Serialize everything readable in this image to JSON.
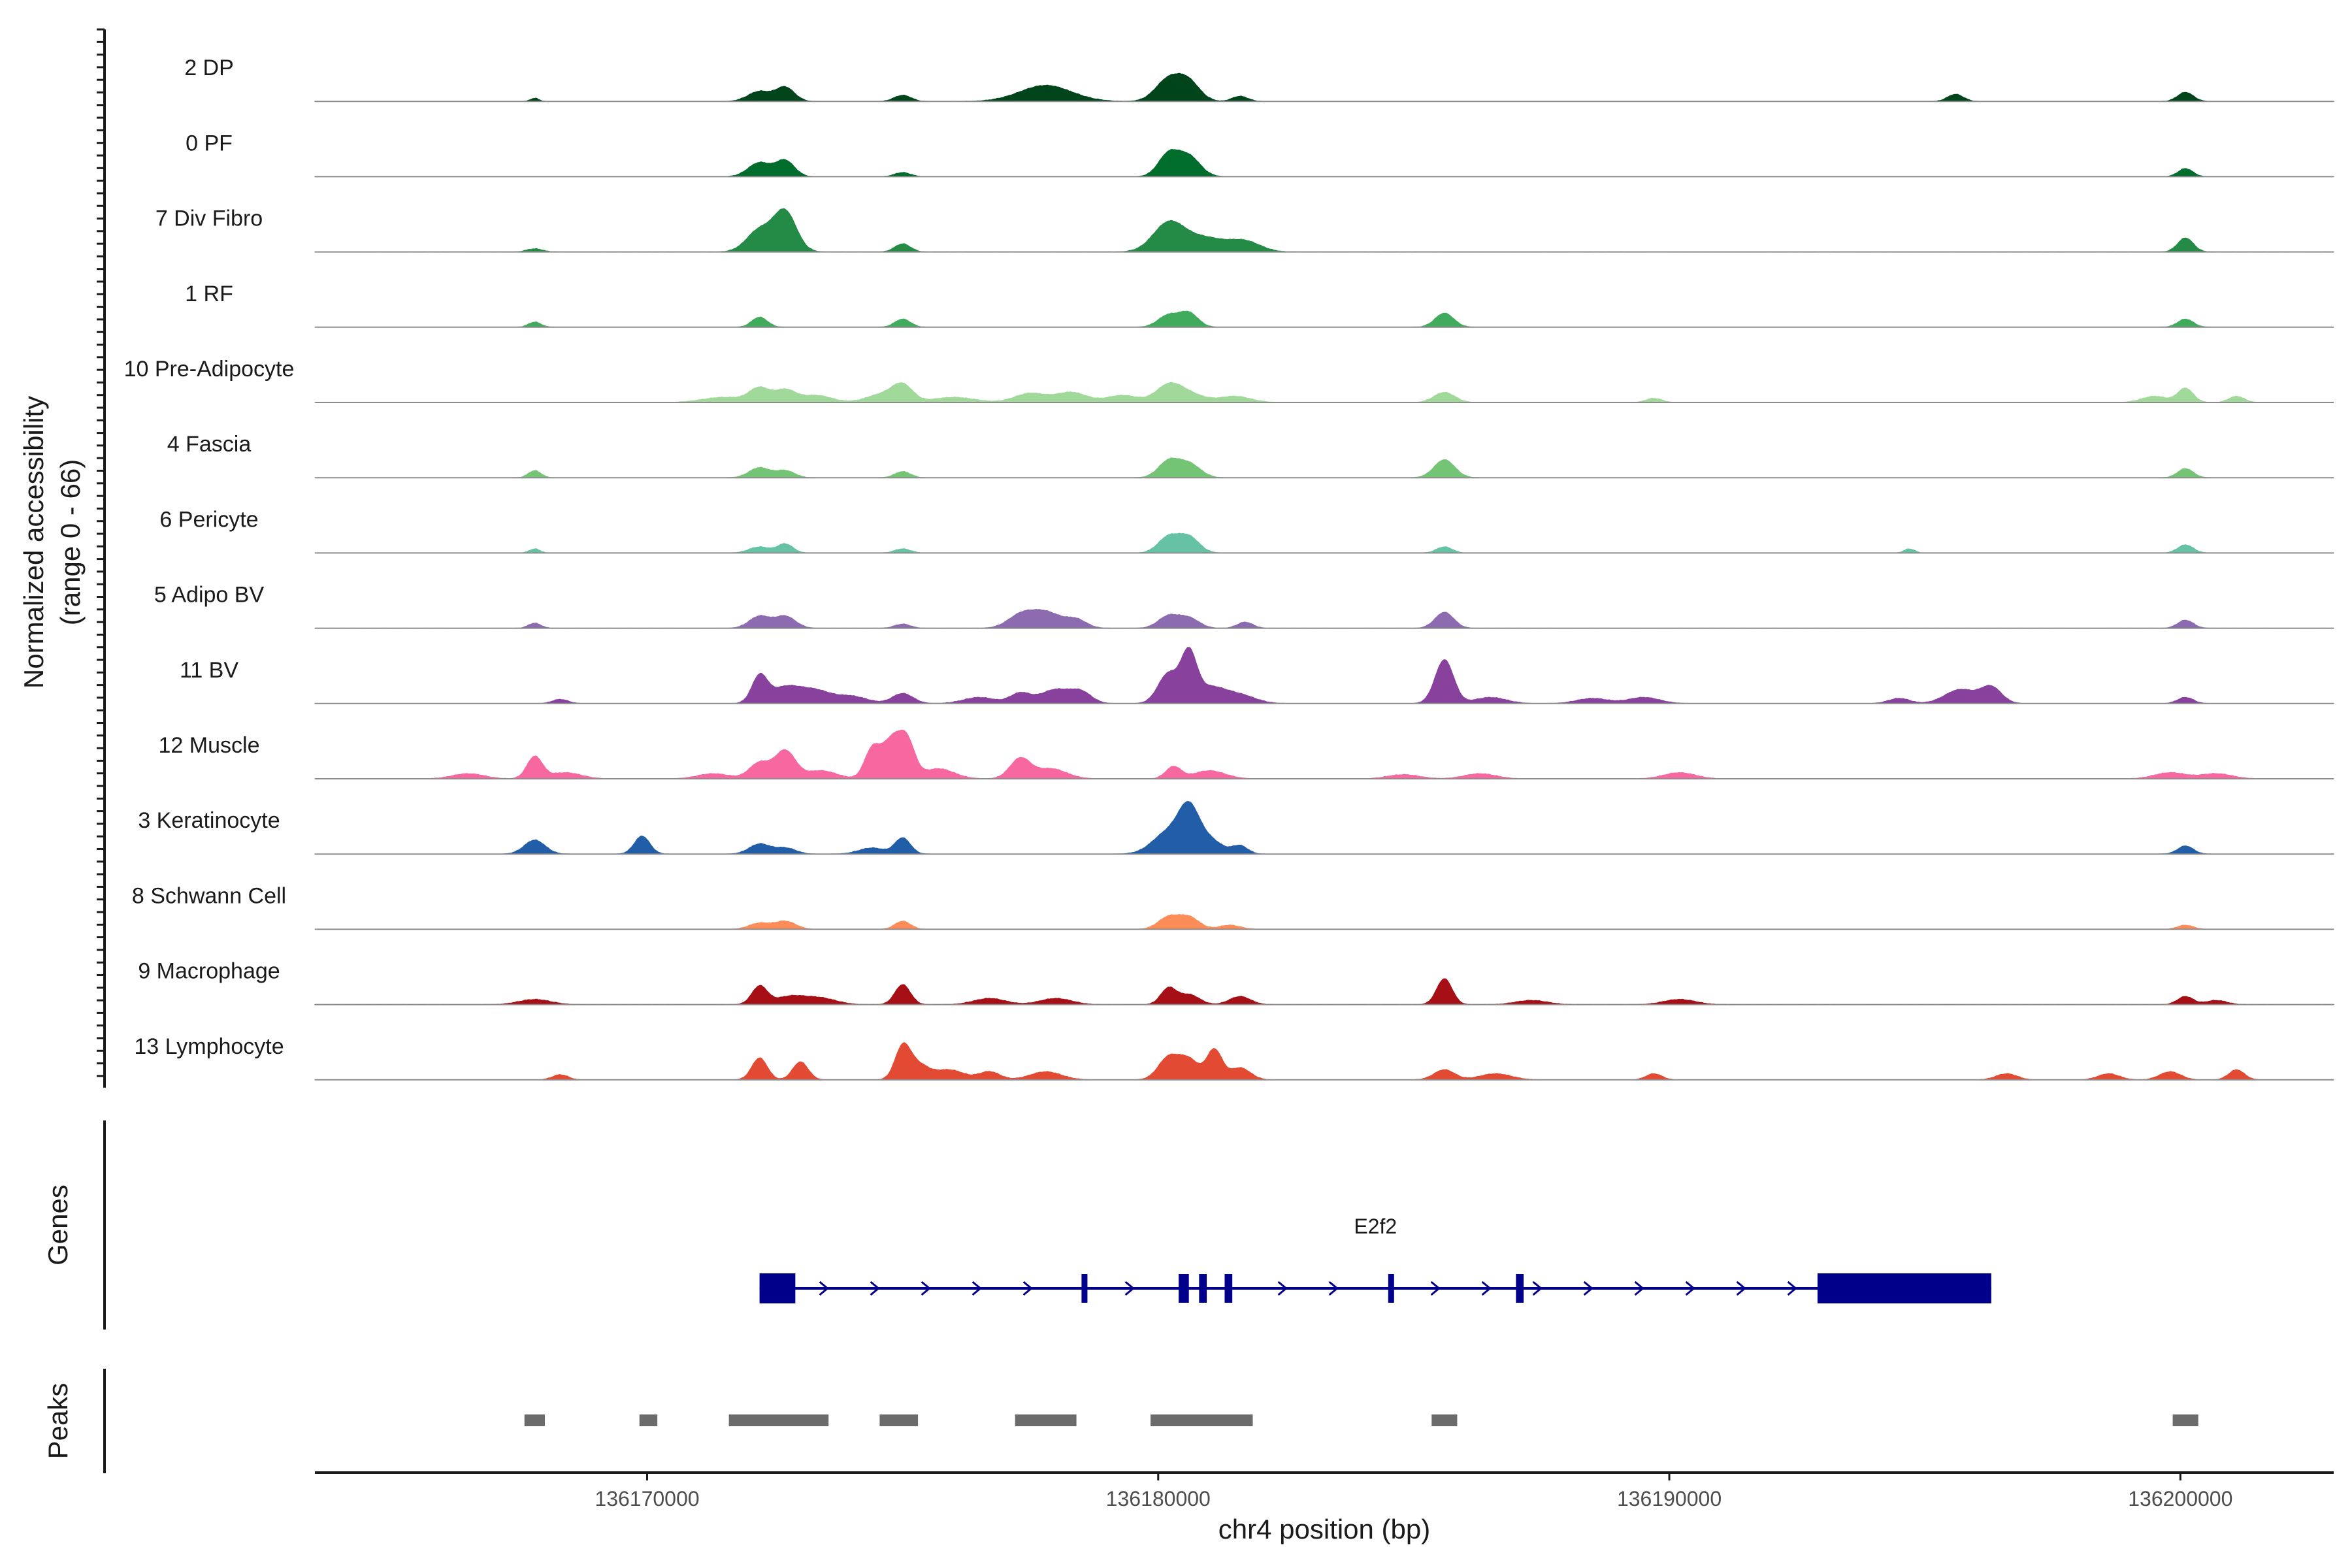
{
  "chart_data": {
    "type": "area",
    "title": "",
    "ylabel": "Normalized accessibility",
    "ylabel_range": "(range 0 - 66)",
    "xlabel": "chr4 position (bp)",
    "xlim": [
      136163500,
      136203000
    ],
    "y_range": [
      0,
      66
    ],
    "x_ticks": [
      136170000,
      136180000,
      136190000,
      136200000
    ],
    "x_tick_labels": [
      "136170000",
      "136180000",
      "136190000",
      "136200000"
    ],
    "panel_labels": {
      "genes": "Genes",
      "peaks": "Peaks"
    },
    "tracks": [
      {
        "name": "2 DP",
        "color": "#00441b",
        "peaks": [
          [
            136167800,
            3,
            80
          ],
          [
            136172200,
            10,
            220
          ],
          [
            136172700,
            14,
            180
          ],
          [
            136175000,
            6,
            160
          ],
          [
            136177800,
            16,
            500
          ],
          [
            136180200,
            22,
            250
          ],
          [
            136180600,
            18,
            220
          ],
          [
            136181600,
            5,
            150
          ],
          [
            136195600,
            7,
            150
          ],
          [
            136200100,
            9,
            150
          ]
        ]
      },
      {
        "name": "0 PF",
        "color": "#006d2c",
        "peaks": [
          [
            136172200,
            14,
            220
          ],
          [
            136172700,
            16,
            180
          ],
          [
            136175000,
            4,
            150
          ],
          [
            136180200,
            22,
            200
          ],
          [
            136180600,
            20,
            220
          ],
          [
            136200100,
            8,
            140
          ]
        ]
      },
      {
        "name": "7 Div Fibro",
        "color": "#238b45",
        "peaks": [
          [
            136167800,
            3,
            150
          ],
          [
            136172200,
            22,
            250
          ],
          [
            136172700,
            40,
            220
          ],
          [
            136175000,
            8,
            150
          ],
          [
            136180200,
            28,
            300
          ],
          [
            136180900,
            14,
            400
          ],
          [
            136181700,
            10,
            300
          ],
          [
            136200100,
            14,
            150
          ]
        ]
      },
      {
        "name": "1 RF",
        "color": "#41ab5d",
        "peaks": [
          [
            136167800,
            5,
            120
          ],
          [
            136172200,
            10,
            150
          ],
          [
            136175000,
            8,
            150
          ],
          [
            136180200,
            12,
            200
          ],
          [
            136180600,
            14,
            180
          ],
          [
            136185600,
            14,
            180
          ],
          [
            136200100,
            8,
            150
          ]
        ]
      },
      {
        "name": "10 Pre-Adipocyte",
        "color": "#a1d99b",
        "peaks": [
          [
            136171500,
            5,
            400
          ],
          [
            136172200,
            14,
            200
          ],
          [
            136172700,
            12,
            200
          ],
          [
            136173300,
            7,
            300
          ],
          [
            136174600,
            8,
            300
          ],
          [
            136175000,
            16,
            200
          ],
          [
            136176000,
            5,
            400
          ],
          [
            136177500,
            9,
            300
          ],
          [
            136178300,
            10,
            300
          ],
          [
            136179300,
            7,
            300
          ],
          [
            136180200,
            16,
            250
          ],
          [
            136180600,
            8,
            300
          ],
          [
            136181500,
            6,
            300
          ],
          [
            136185600,
            10,
            200
          ],
          [
            136189700,
            4,
            150
          ],
          [
            136199500,
            6,
            250
          ],
          [
            136200100,
            14,
            150
          ],
          [
            136201100,
            6,
            150
          ]
        ]
      },
      {
        "name": "4 Fascia",
        "color": "#74c476",
        "peaks": [
          [
            136167800,
            7,
            120
          ],
          [
            136172200,
            10,
            200
          ],
          [
            136172700,
            7,
            180
          ],
          [
            136175000,
            6,
            150
          ],
          [
            136180200,
            16,
            200
          ],
          [
            136180600,
            14,
            220
          ],
          [
            136185600,
            18,
            200
          ],
          [
            136200100,
            9,
            150
          ]
        ]
      },
      {
        "name": "6 Pericyte",
        "color": "#66c2a4",
        "peaks": [
          [
            136167800,
            4,
            100
          ],
          [
            136172200,
            6,
            200
          ],
          [
            136172700,
            9,
            150
          ],
          [
            136175000,
            4,
            150
          ],
          [
            136180200,
            16,
            200
          ],
          [
            136180600,
            16,
            200
          ],
          [
            136185600,
            6,
            150
          ],
          [
            136194700,
            4,
            100
          ],
          [
            136200100,
            8,
            150
          ]
        ]
      },
      {
        "name": "5 Adipo BV",
        "color": "#8c6bb1",
        "peaks": [
          [
            136167800,
            5,
            120
          ],
          [
            136172200,
            12,
            200
          ],
          [
            136172700,
            12,
            200
          ],
          [
            136175000,
            4,
            150
          ],
          [
            136177300,
            12,
            250
          ],
          [
            136177800,
            16,
            300
          ],
          [
            136178400,
            8,
            200
          ],
          [
            136180200,
            12,
            200
          ],
          [
            136180600,
            10,
            200
          ],
          [
            136181700,
            6,
            150
          ],
          [
            136185600,
            16,
            180
          ],
          [
            136200100,
            8,
            150
          ]
        ]
      },
      {
        "name": "11 BV",
        "color": "#88419d",
        "peaks": [
          [
            136168300,
            4,
            150
          ],
          [
            136172200,
            26,
            150
          ],
          [
            136172700,
            16,
            300
          ],
          [
            136173300,
            12,
            300
          ],
          [
            136174000,
            7,
            300
          ],
          [
            136175000,
            10,
            200
          ],
          [
            136176500,
            6,
            300
          ],
          [
            136177300,
            10,
            200
          ],
          [
            136178000,
            14,
            300
          ],
          [
            136178500,
            10,
            200
          ],
          [
            136180200,
            30,
            200
          ],
          [
            136180600,
            46,
            150
          ],
          [
            136181000,
            16,
            300
          ],
          [
            136181600,
            8,
            300
          ],
          [
            136185600,
            44,
            180
          ],
          [
            136186500,
            6,
            300
          ],
          [
            136188500,
            5,
            300
          ],
          [
            136189500,
            6,
            300
          ],
          [
            136194500,
            5,
            200
          ],
          [
            136195700,
            14,
            300
          ],
          [
            136196300,
            16,
            200
          ],
          [
            136200100,
            6,
            150
          ]
        ]
      },
      {
        "name": "12 Muscle",
        "color": "#f768a1",
        "peaks": [
          [
            136166500,
            5,
            300
          ],
          [
            136167800,
            22,
            150
          ],
          [
            136168400,
            6,
            300
          ],
          [
            136171300,
            5,
            300
          ],
          [
            136172200,
            16,
            200
          ],
          [
            136172700,
            28,
            200
          ],
          [
            136173400,
            8,
            300
          ],
          [
            136174400,
            28,
            150
          ],
          [
            136174800,
            40,
            200
          ],
          [
            136175100,
            30,
            150
          ],
          [
            136175700,
            10,
            300
          ],
          [
            136177300,
            20,
            200
          ],
          [
            136177900,
            10,
            300
          ],
          [
            136180300,
            12,
            150
          ],
          [
            136181000,
            8,
            300
          ],
          [
            136184800,
            4,
            300
          ],
          [
            136186300,
            5,
            300
          ],
          [
            136190200,
            6,
            300
          ],
          [
            136199800,
            6,
            300
          ],
          [
            136200700,
            5,
            300
          ]
        ]
      },
      {
        "name": "3 Keratinocyte",
        "color": "#225ea8",
        "peaks": [
          [
            136167800,
            14,
            200
          ],
          [
            136169900,
            18,
            150
          ],
          [
            136172200,
            10,
            200
          ],
          [
            136172700,
            6,
            200
          ],
          [
            136175000,
            16,
            150
          ],
          [
            136174400,
            6,
            250
          ],
          [
            136180200,
            22,
            300
          ],
          [
            136180600,
            40,
            200
          ],
          [
            136181000,
            14,
            250
          ],
          [
            136181600,
            8,
            150
          ],
          [
            136200100,
            8,
            150
          ]
        ]
      },
      {
        "name": "8 Schwann Cell",
        "color": "#fc8d59",
        "peaks": [
          [
            136172200,
            6,
            200
          ],
          [
            136172700,
            8,
            200
          ],
          [
            136175000,
            8,
            150
          ],
          [
            136180200,
            12,
            200
          ],
          [
            136180600,
            12,
            200
          ],
          [
            136181400,
            4,
            200
          ],
          [
            136200100,
            4,
            150
          ]
        ]
      },
      {
        "name": "9 Macrophage",
        "color": "#a50f15",
        "peaks": [
          [
            136167800,
            5,
            300
          ],
          [
            136172200,
            18,
            150
          ],
          [
            136172800,
            8,
            300
          ],
          [
            136173400,
            6,
            300
          ],
          [
            136175000,
            20,
            150
          ],
          [
            136176700,
            6,
            300
          ],
          [
            136178000,
            6,
            300
          ],
          [
            136180200,
            16,
            150
          ],
          [
            136180600,
            10,
            200
          ],
          [
            136181600,
            8,
            200
          ],
          [
            136185600,
            26,
            150
          ],
          [
            136187300,
            4,
            300
          ],
          [
            136190200,
            5,
            300
          ],
          [
            136200100,
            8,
            150
          ],
          [
            136200700,
            4,
            200
          ]
        ]
      },
      {
        "name": "13 Lymphocyte",
        "color": "#e34a33",
        "peaks": [
          [
            136168300,
            5,
            150
          ],
          [
            136172200,
            22,
            150
          ],
          [
            136173000,
            18,
            150
          ],
          [
            136175000,
            32,
            150
          ],
          [
            136175300,
            14,
            200
          ],
          [
            136175900,
            10,
            300
          ],
          [
            136176700,
            8,
            200
          ],
          [
            136177800,
            8,
            300
          ],
          [
            136180200,
            22,
            200
          ],
          [
            136180600,
            20,
            200
          ],
          [
            136181100,
            30,
            150
          ],
          [
            136181600,
            12,
            200
          ],
          [
            136185600,
            10,
            200
          ],
          [
            136186600,
            6,
            300
          ],
          [
            136189700,
            6,
            150
          ],
          [
            136196600,
            6,
            200
          ],
          [
            136198600,
            6,
            200
          ],
          [
            136199800,
            8,
            200
          ],
          [
            136201100,
            10,
            150
          ]
        ]
      }
    ],
    "gene": {
      "name": "E2f2",
      "color": "#00008b",
      "start": 136172200,
      "end": 136196300,
      "exons": [
        [
          136172200,
          136172900,
          "utr"
        ],
        [
          136178500,
          136178600,
          "cds"
        ],
        [
          136180400,
          136180600,
          "cds"
        ],
        [
          136180800,
          136180950,
          "cds"
        ],
        [
          136181300,
          136181450,
          "cds"
        ],
        [
          136184500,
          136184600,
          "cds"
        ],
        [
          136187000,
          136187150,
          "cds"
        ],
        [
          136192900,
          136196300,
          "utr"
        ]
      ]
    },
    "peak_regions": [
      [
        136167600,
        136168000
      ],
      [
        136169850,
        136170200
      ],
      [
        136171600,
        136173550
      ],
      [
        136174550,
        136175300
      ],
      [
        136177200,
        136178400
      ],
      [
        136179850,
        136181850
      ],
      [
        136185350,
        136185850
      ],
      [
        136199850,
        136200350
      ]
    ],
    "peak_color": "#6b6b6b"
  }
}
